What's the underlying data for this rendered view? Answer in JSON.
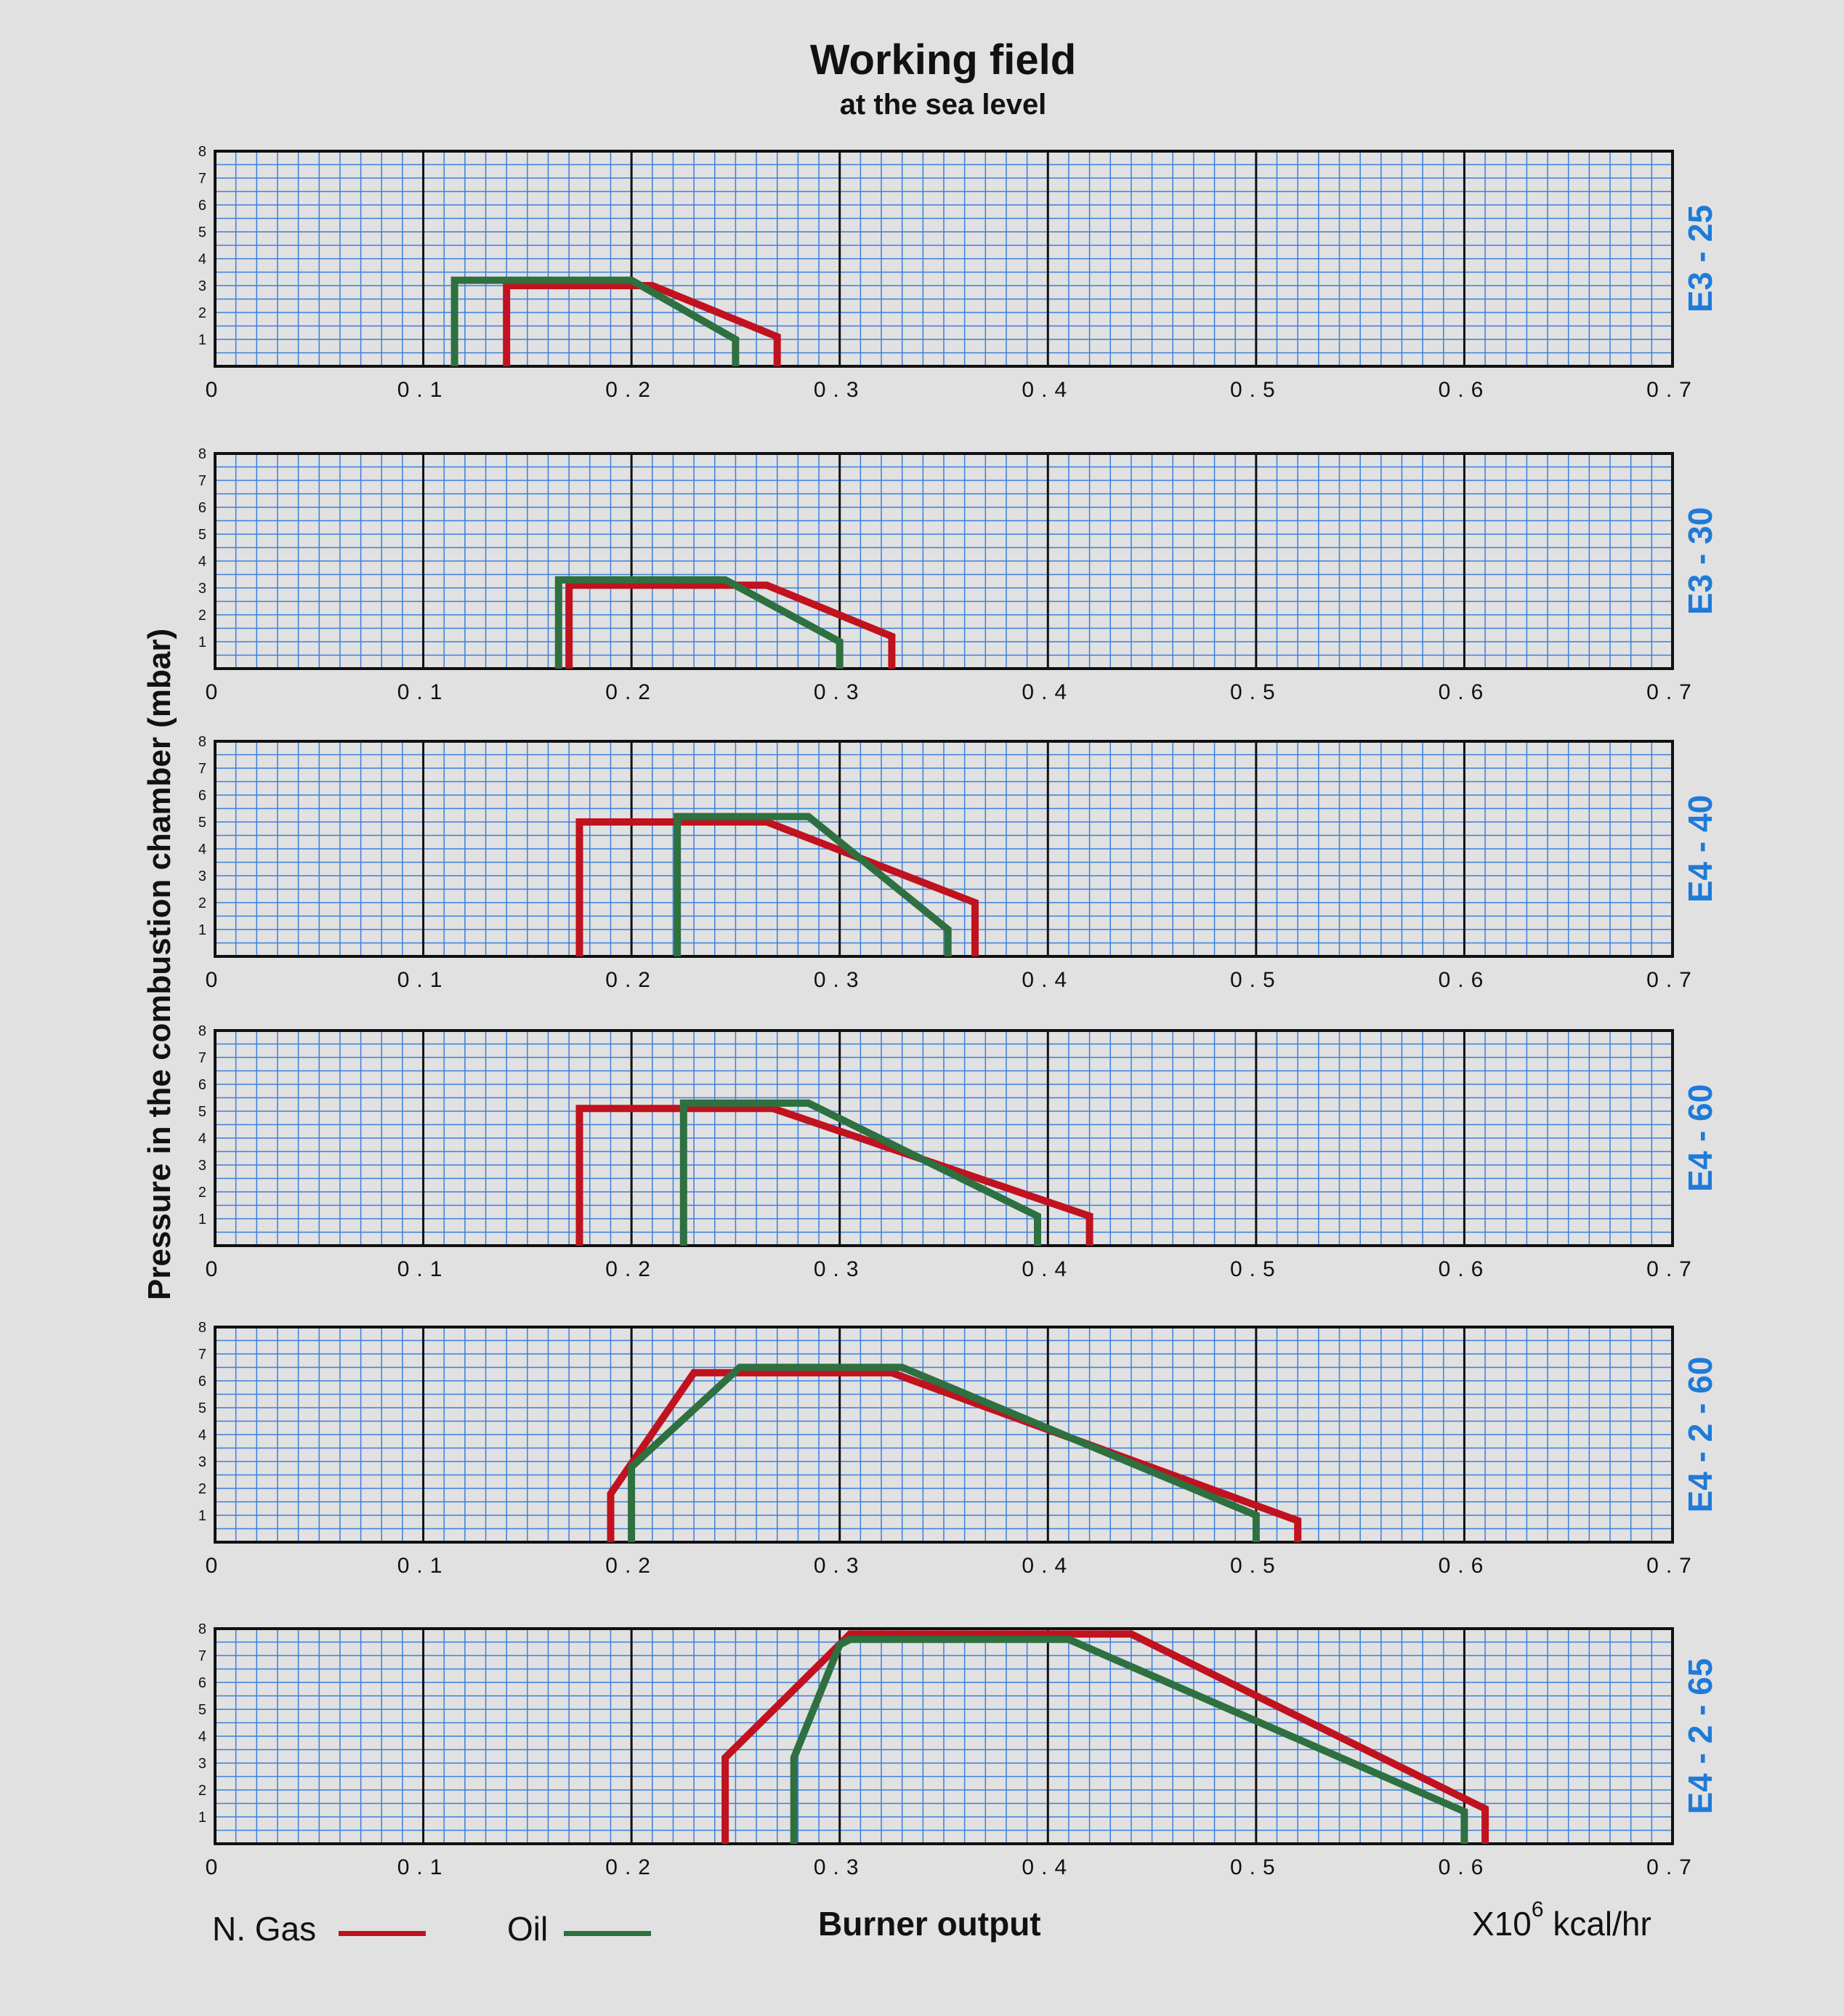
{
  "title": "Working field",
  "subtitle": "at the sea level",
  "ylabel": "Pressure in the combustion chamber (mbar)",
  "xlabel": "Burner output",
  "units": {
    "prefix": "X10",
    "exponent": "6",
    "suffix": "kcal/hr"
  },
  "legend": [
    {
      "label": "N. Gas",
      "color": "#c0121f"
    },
    {
      "label": "Oil",
      "color": "#2e7040"
    }
  ],
  "colors": {
    "grid_minor": "#3a7fdc",
    "grid_major": "#111111",
    "panel_label": "#1f7ad8",
    "background": "#e1e1e1"
  },
  "chart_data": [
    {
      "type": "line",
      "panel_label": "E3 - 25",
      "xlim": [
        0,
        0.7
      ],
      "ylim": [
        0,
        8
      ],
      "x_ticks": [
        "0",
        "0.1",
        "0.2",
        "0.3",
        "0.4",
        "0.5",
        "0.6",
        "0.7"
      ],
      "y_ticks": [
        "1",
        "2",
        "3",
        "4",
        "5",
        "6",
        "7",
        "8"
      ],
      "grid": true,
      "series": [
        {
          "name": "N. Gas",
          "color": "#c0121f",
          "points": [
            [
              0.14,
              0
            ],
            [
              0.14,
              3.0
            ],
            [
              0.21,
              3.0
            ],
            [
              0.27,
              1.1
            ],
            [
              0.27,
              0
            ]
          ]
        },
        {
          "name": "Oil",
          "color": "#2e7040",
          "points": [
            [
              0.115,
              0
            ],
            [
              0.115,
              3.2
            ],
            [
              0.2,
              3.2
            ],
            [
              0.25,
              1.0
            ],
            [
              0.25,
              0
            ]
          ]
        }
      ]
    },
    {
      "type": "line",
      "panel_label": "E3 - 30",
      "xlim": [
        0,
        0.7
      ],
      "ylim": [
        0,
        8
      ],
      "x_ticks": [
        "0",
        "0.1",
        "0.2",
        "0.3",
        "0.4",
        "0.5",
        "0.6",
        "0.7"
      ],
      "y_ticks": [
        "1",
        "2",
        "3",
        "4",
        "5",
        "6",
        "7",
        "8"
      ],
      "grid": true,
      "series": [
        {
          "name": "N. Gas",
          "color": "#c0121f",
          "points": [
            [
              0.17,
              0
            ],
            [
              0.17,
              3.1
            ],
            [
              0.265,
              3.1
            ],
            [
              0.325,
              1.2
            ],
            [
              0.325,
              0
            ]
          ]
        },
        {
          "name": "Oil",
          "color": "#2e7040",
          "points": [
            [
              0.165,
              0
            ],
            [
              0.165,
              3.3
            ],
            [
              0.245,
              3.3
            ],
            [
              0.3,
              1.0
            ],
            [
              0.3,
              0
            ]
          ]
        }
      ]
    },
    {
      "type": "line",
      "panel_label": "E4 - 40",
      "xlim": [
        0,
        0.7
      ],
      "ylim": [
        0,
        8
      ],
      "x_ticks": [
        "0",
        "0.1",
        "0.2",
        "0.3",
        "0.4",
        "0.5",
        "0.6",
        "0.7"
      ],
      "y_ticks": [
        "1",
        "2",
        "3",
        "4",
        "5",
        "6",
        "7",
        "8"
      ],
      "grid": true,
      "series": [
        {
          "name": "N. Gas",
          "color": "#c0121f",
          "points": [
            [
              0.175,
              0
            ],
            [
              0.175,
              5.0
            ],
            [
              0.265,
              5.0
            ],
            [
              0.365,
              2.0
            ],
            [
              0.365,
              0
            ]
          ]
        },
        {
          "name": "Oil",
          "color": "#2e7040",
          "points": [
            [
              0.222,
              0
            ],
            [
              0.222,
              5.2
            ],
            [
              0.285,
              5.2
            ],
            [
              0.352,
              1.0
            ],
            [
              0.352,
              0
            ]
          ]
        }
      ]
    },
    {
      "type": "line",
      "panel_label": "E4 - 60",
      "xlim": [
        0,
        0.7
      ],
      "ylim": [
        0,
        8
      ],
      "x_ticks": [
        "0",
        "0.1",
        "0.2",
        "0.3",
        "0.4",
        "0.5",
        "0.6",
        "0.7"
      ],
      "y_ticks": [
        "1",
        "2",
        "3",
        "4",
        "5",
        "6",
        "7",
        "8"
      ],
      "grid": true,
      "series": [
        {
          "name": "N. Gas",
          "color": "#c0121f",
          "points": [
            [
              0.175,
              0
            ],
            [
              0.175,
              5.1
            ],
            [
              0.268,
              5.1
            ],
            [
              0.42,
              1.1
            ],
            [
              0.42,
              0
            ]
          ]
        },
        {
          "name": "Oil",
          "color": "#2e7040",
          "points": [
            [
              0.225,
              0
            ],
            [
              0.225,
              5.3
            ],
            [
              0.285,
              5.3
            ],
            [
              0.395,
              1.1
            ],
            [
              0.395,
              0
            ]
          ]
        }
      ]
    },
    {
      "type": "line",
      "panel_label": "E4 - 2 - 60",
      "xlim": [
        0,
        0.7
      ],
      "ylim": [
        0,
        8
      ],
      "x_ticks": [
        "0",
        "0.1",
        "0.2",
        "0.3",
        "0.4",
        "0.5",
        "0.6",
        "0.7"
      ],
      "y_ticks": [
        "1",
        "2",
        "3",
        "4",
        "5",
        "6",
        "7",
        "8"
      ],
      "grid": true,
      "series": [
        {
          "name": "N. Gas",
          "color": "#c0121f",
          "points": [
            [
              0.19,
              0
            ],
            [
              0.19,
              1.8
            ],
            [
              0.23,
              6.3
            ],
            [
              0.325,
              6.3
            ],
            [
              0.52,
              0.8
            ],
            [
              0.52,
              0
            ]
          ]
        },
        {
          "name": "Oil",
          "color": "#2e7040",
          "points": [
            [
              0.2,
              0
            ],
            [
              0.2,
              2.8
            ],
            [
              0.252,
              6.5
            ],
            [
              0.33,
              6.5
            ],
            [
              0.5,
              1.0
            ],
            [
              0.5,
              0
            ]
          ]
        }
      ]
    },
    {
      "type": "line",
      "panel_label": "E4 - 2 - 65",
      "xlim": [
        0,
        0.7
      ],
      "ylim": [
        0,
        8
      ],
      "x_ticks": [
        "0",
        "0.1",
        "0.2",
        "0.3",
        "0.4",
        "0.5",
        "0.6",
        "0.7"
      ],
      "y_ticks": [
        "1",
        "2",
        "3",
        "4",
        "5",
        "6",
        "7",
        "8"
      ],
      "grid": true,
      "series": [
        {
          "name": "N. Gas",
          "color": "#c0121f",
          "points": [
            [
              0.245,
              0
            ],
            [
              0.245,
              3.2
            ],
            [
              0.305,
              7.8
            ],
            [
              0.44,
              7.8
            ],
            [
              0.61,
              1.3
            ],
            [
              0.61,
              0
            ]
          ]
        },
        {
          "name": "Oil",
          "color": "#2e7040",
          "points": [
            [
              0.278,
              0
            ],
            [
              0.278,
              3.2
            ],
            [
              0.3,
              7.4
            ],
            [
              0.305,
              7.6
            ],
            [
              0.41,
              7.6
            ],
            [
              0.6,
              1.2
            ],
            [
              0.6,
              0
            ]
          ]
        }
      ]
    }
  ]
}
